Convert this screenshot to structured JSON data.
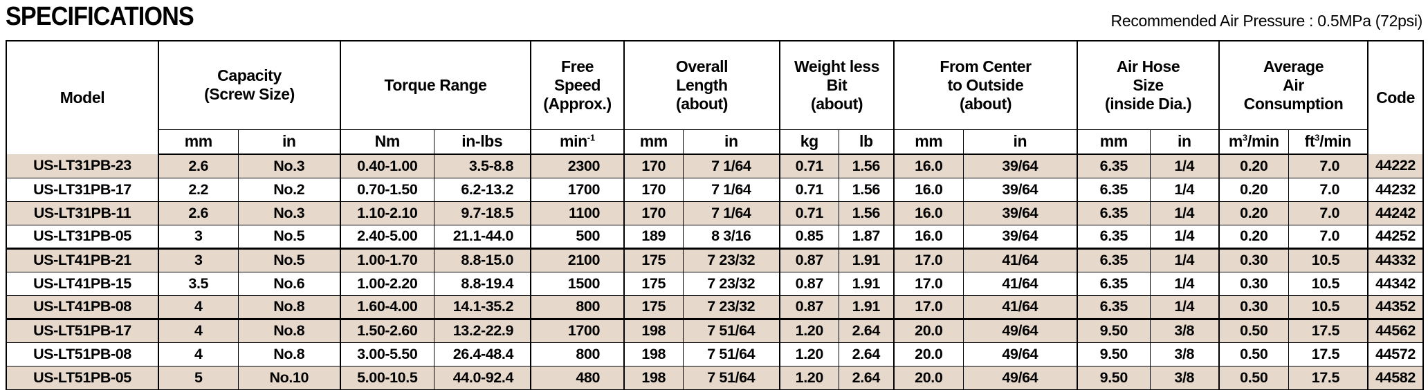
{
  "title": "SPECIFICATIONS",
  "note": "Recommended Air Pressure : 0.5MPa (72psi)",
  "colors": {
    "row_shade": "#e6d9cb",
    "border": "#000000",
    "text": "#000000",
    "background": "#ffffff"
  },
  "table": {
    "model_header": "Model",
    "code_header": "Code",
    "groups": [
      {
        "label_lines": [
          "Capacity",
          "(Screw Size)"
        ],
        "units": [
          "mm",
          "in"
        ]
      },
      {
        "label_lines": [
          "Torque Range"
        ],
        "units": [
          "Nm",
          "in-lbs"
        ]
      },
      {
        "label_lines": [
          "Free",
          "Speed",
          "(Approx.)"
        ],
        "units": [
          {
            "pre": "min",
            "sup": "-1",
            "post": ""
          }
        ]
      },
      {
        "label_lines": [
          "Overall",
          "Length",
          "(about)"
        ],
        "units": [
          "mm",
          "in"
        ]
      },
      {
        "label_lines": [
          "Weight less",
          "Bit",
          "(about)"
        ],
        "units": [
          "kg",
          "lb"
        ]
      },
      {
        "label_lines": [
          "From Center",
          "to Outside",
          "(about)"
        ],
        "units": [
          "mm",
          "in"
        ]
      },
      {
        "label_lines": [
          "Air Hose",
          "Size",
          "(inside Dia.)"
        ],
        "units": [
          "mm",
          "in"
        ]
      },
      {
        "label_lines": [
          "Average",
          "Air",
          "Consumption"
        ],
        "units": [
          {
            "pre": "m",
            "sup": "3",
            "post": "/min"
          },
          {
            "pre": "ft",
            "sup": "3",
            "post": "/min"
          }
        ]
      }
    ],
    "sections": [
      {
        "rows": [
          {
            "cells": [
              "US-LT31PB-23",
              "2.6",
              "No.3",
              "0.40-1.00",
              "3.5-8.8",
              "2300",
              "170",
              "7 1/64",
              "0.71",
              "1.56",
              "16.0",
              "39/64",
              "6.35",
              "1/4",
              "0.20",
              "7.0",
              "44222"
            ]
          },
          {
            "cells": [
              "US-LT31PB-17",
              "2.2",
              "No.2",
              "0.70-1.50",
              "6.2-13.2",
              "1700",
              "170",
              "7 1/64",
              "0.71",
              "1.56",
              "16.0",
              "39/64",
              "6.35",
              "1/4",
              "0.20",
              "7.0",
              "44232"
            ]
          },
          {
            "cells": [
              "US-LT31PB-11",
              "2.6",
              "No.3",
              "1.10-2.10",
              "9.7-18.5",
              "1100",
              "170",
              "7 1/64",
              "0.71",
              "1.56",
              "16.0",
              "39/64",
              "6.35",
              "1/4",
              "0.20",
              "7.0",
              "44242"
            ]
          },
          {
            "cells": [
              "US-LT31PB-05",
              "3",
              "No.5",
              "2.40-5.00",
              "21.1-44.0",
              "500",
              "189",
              "8 3/16",
              "0.85",
              "1.87",
              "16.0",
              "39/64",
              "6.35",
              "1/4",
              "0.20",
              "7.0",
              "44252"
            ]
          }
        ]
      },
      {
        "rows": [
          {
            "cells": [
              "US-LT41PB-21",
              "3",
              "No.5",
              "1.00-1.70",
              "8.8-15.0",
              "2100",
              "175",
              "7 23/32",
              "0.87",
              "1.91",
              "17.0",
              "41/64",
              "6.35",
              "1/4",
              "0.30",
              "10.5",
              "44332"
            ]
          },
          {
            "cells": [
              "US-LT41PB-15",
              "3.5",
              "No.6",
              "1.00-2.20",
              "8.8-19.4",
              "1500",
              "175",
              "7 23/32",
              "0.87",
              "1.91",
              "17.0",
              "41/64",
              "6.35",
              "1/4",
              "0.30",
              "10.5",
              "44342"
            ]
          },
          {
            "cells": [
              "US-LT41PB-08",
              "4",
              "No.8",
              "1.60-4.00",
              "14.1-35.2",
              "800",
              "175",
              "7 23/32",
              "0.87",
              "1.91",
              "17.0",
              "41/64",
              "6.35",
              "1/4",
              "0.30",
              "10.5",
              "44352"
            ]
          }
        ]
      },
      {
        "rows": [
          {
            "cells": [
              "US-LT51PB-17",
              "4",
              "No.8",
              "1.50-2.60",
              "13.2-22.9",
              "1700",
              "198",
              "7 51/64",
              "1.20",
              "2.64",
              "20.0",
              "49/64",
              "9.50",
              "3/8",
              "0.50",
              "17.5",
              "44562"
            ]
          },
          {
            "cells": [
              "US-LT51PB-08",
              "4",
              "No.8",
              "3.00-5.50",
              "26.4-48.4",
              "800",
              "198",
              "7 51/64",
              "1.20",
              "2.64",
              "20.0",
              "49/64",
              "9.50",
              "3/8",
              "0.50",
              "17.5",
              "44572"
            ]
          },
          {
            "cells": [
              "US-LT51PB-05",
              "5",
              "No.10",
              "5.00-10.5",
              "44.0-92.4",
              "480",
              "198",
              "7 51/64",
              "1.20",
              "2.64",
              "20.0",
              "49/64",
              "9.50",
              "3/8",
              "0.50",
              "17.5",
              "44582"
            ]
          }
        ]
      }
    ]
  }
}
